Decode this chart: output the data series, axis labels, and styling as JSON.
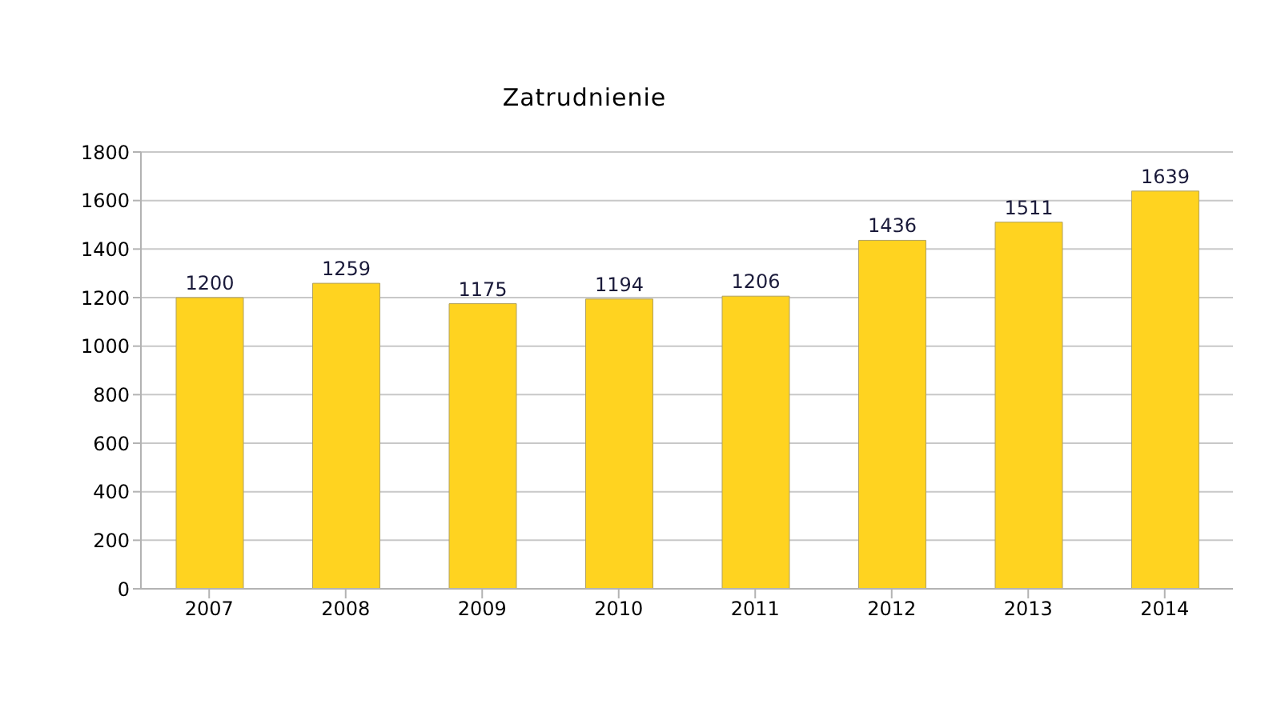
{
  "chart_data": {
    "type": "bar",
    "title": "Zatrudnienie",
    "categories": [
      "2007",
      "2008",
      "2009",
      "2010",
      "2011",
      "2012",
      "2013",
      "2014"
    ],
    "values": [
      1200,
      1259,
      1175,
      1194,
      1206,
      1436,
      1511,
      1639
    ],
    "color": "#ffd320",
    "ylim": [
      0,
      1800
    ],
    "yticks": [
      0,
      200,
      400,
      600,
      800,
      1000,
      1200,
      1400,
      1600,
      1800
    ],
    "grid": "y",
    "data_labels": true,
    "legend": false
  }
}
